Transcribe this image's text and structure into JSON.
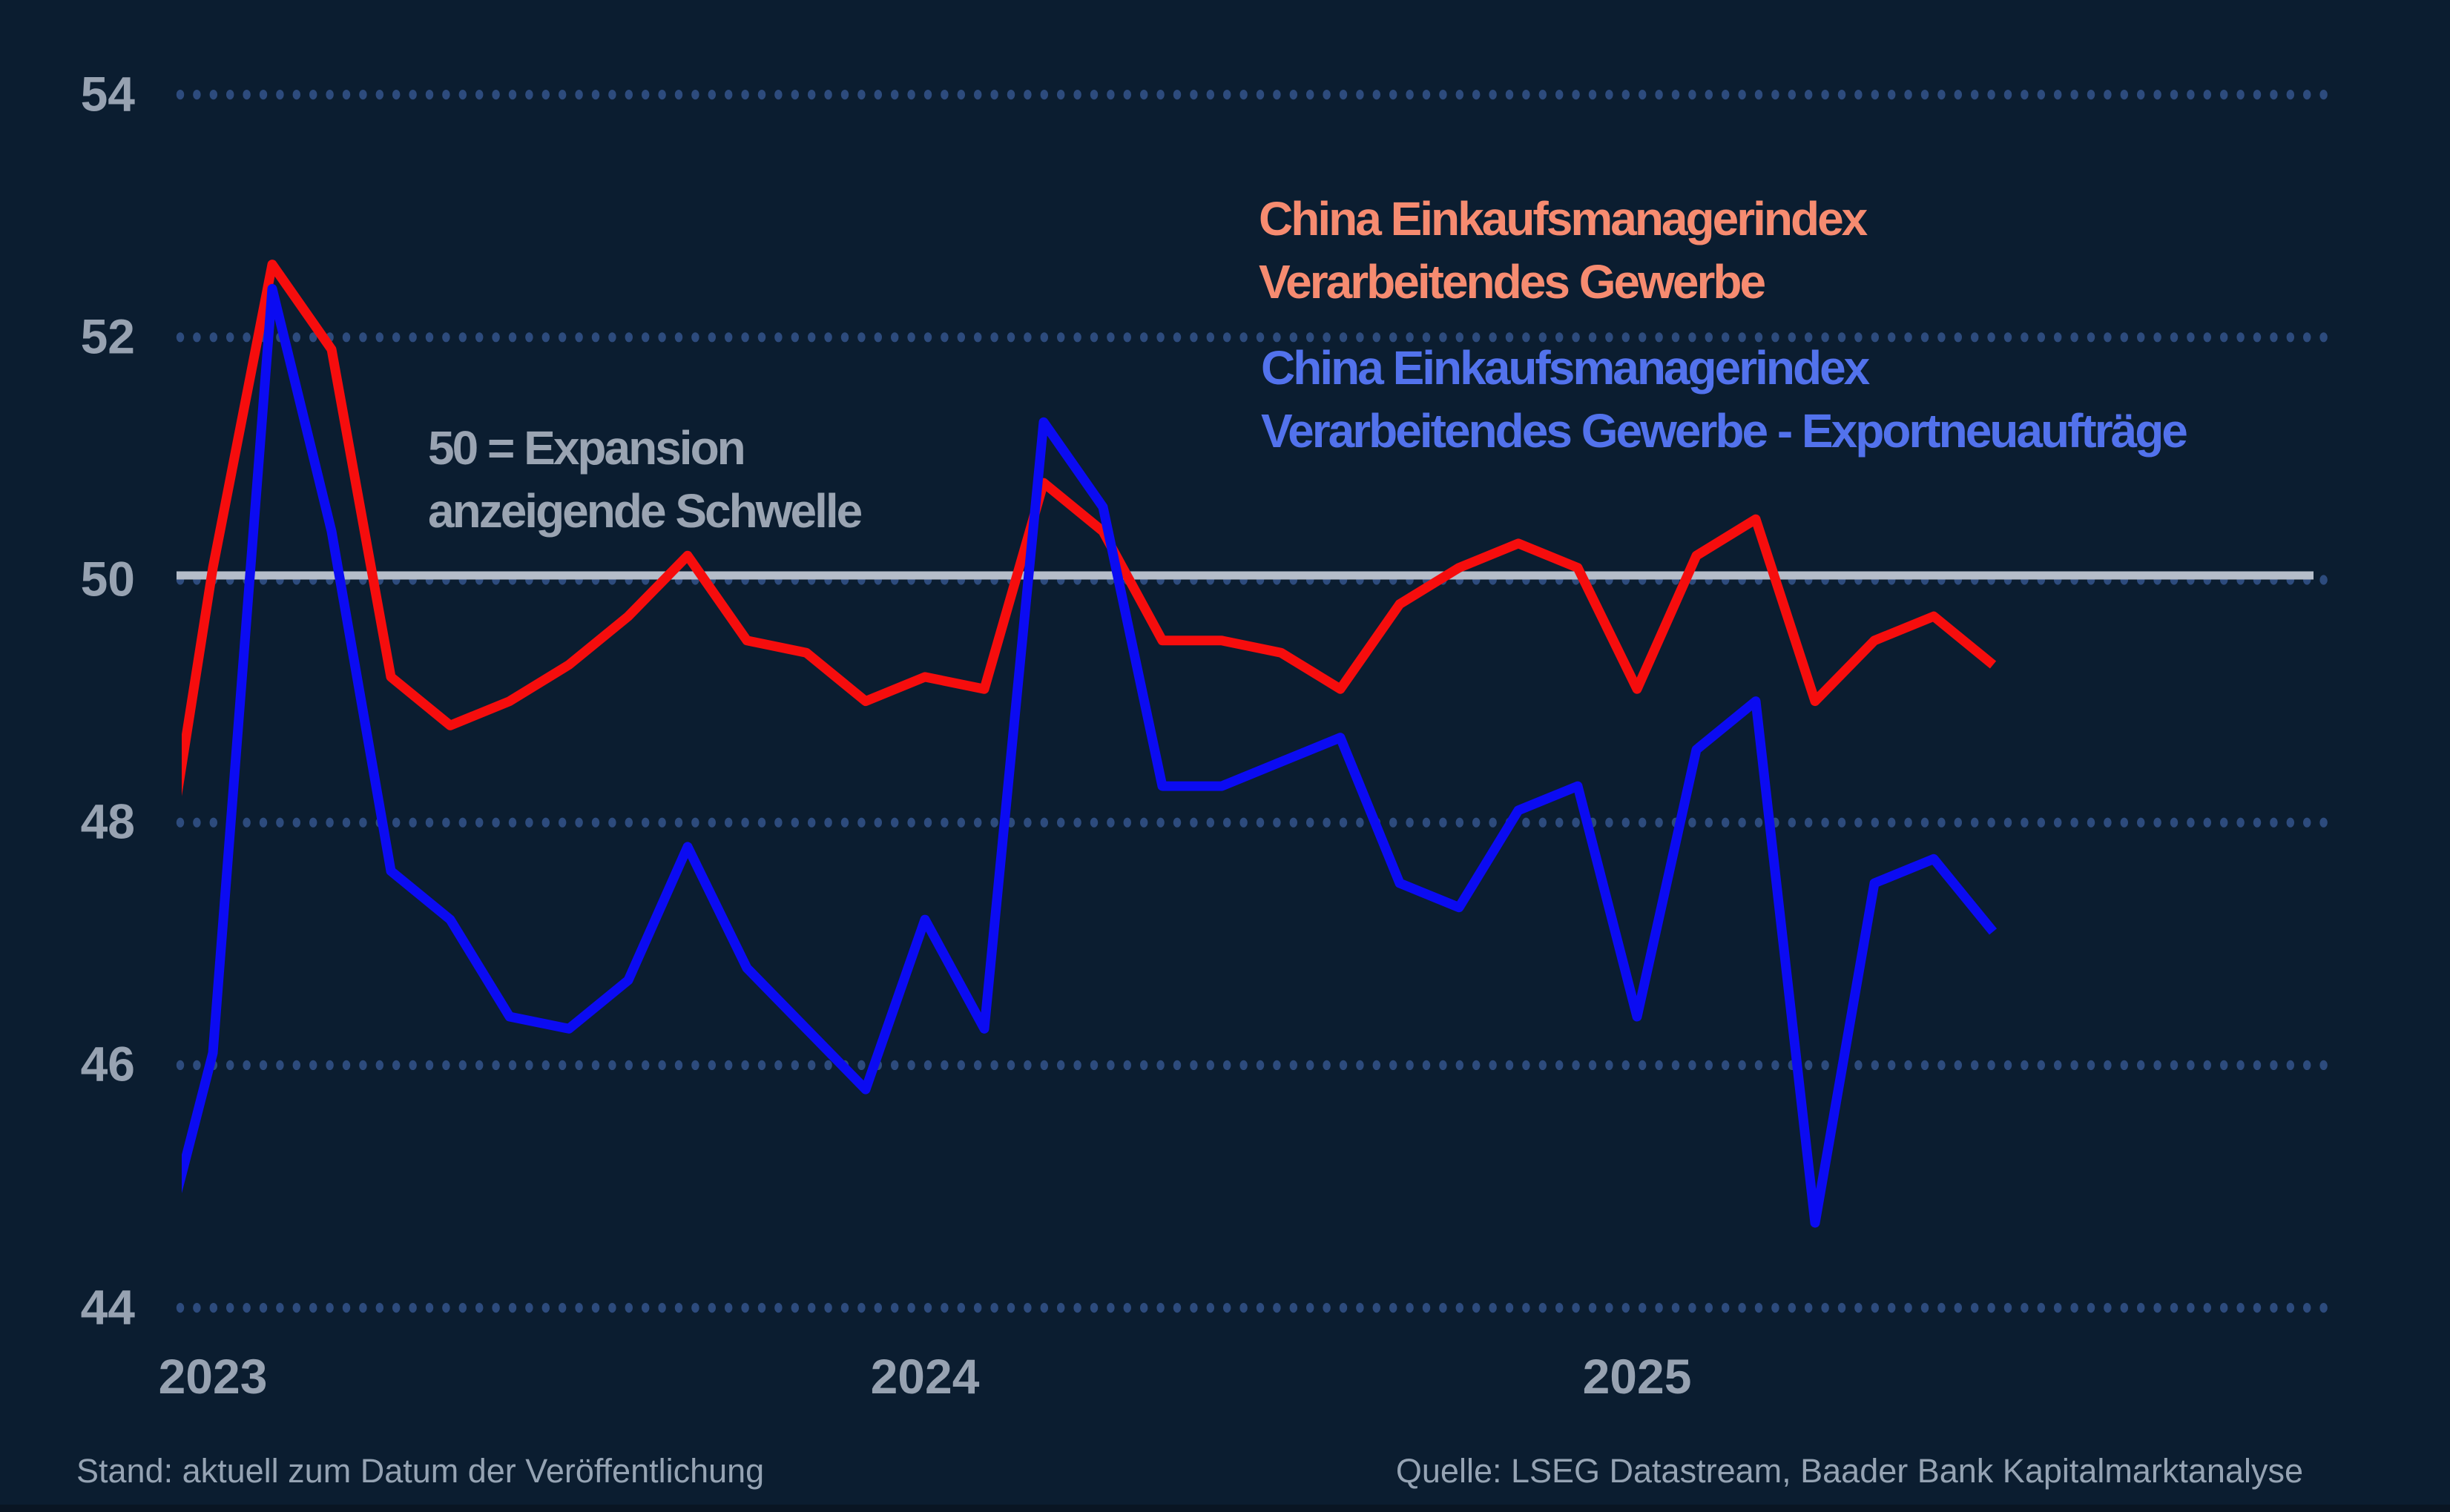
{
  "colors": {
    "background": "#0b1d30",
    "bottom_bar": "#091523",
    "grid_dot": "#2d4b7d",
    "threshold": "#b5bdc9",
    "red_line": "#f60d0d",
    "blue_line": "#0b0bf2",
    "legend_red": "#f68b70",
    "legend_blue": "#5272ec",
    "axis_text": "#97a2b1",
    "annotation_text": "#9aa4b2",
    "footer_text": "#95a3b3"
  },
  "axis": {
    "y_labels": [
      "54",
      "52",
      "50",
      "48",
      "46",
      "44"
    ],
    "x_labels": [
      "2023",
      "2024",
      "2025"
    ]
  },
  "legend": {
    "red": {
      "line1": "China Einkaufsmanagerindex",
      "line2": "Verarbeitendes Gewerbe"
    },
    "blue": {
      "line1": "China Einkaufsmanagerindex",
      "line2": "Verarbeitendes Gewerbe - Exportneuaufträge"
    }
  },
  "annotation": {
    "line1": "50 = Expansion",
    "line2": "anzeigende Schwelle"
  },
  "footer": {
    "left": "Stand: aktuell zum Datum der Veröffentlichung",
    "right": "Quelle: LSEG Datastream, Baader Bank Kapitalmarktanalyse"
  },
  "chart_data": {
    "type": "line",
    "title": "",
    "xlabel": "",
    "ylabel": "",
    "ylim": [
      43.5,
      54.5
    ],
    "yticks": [
      54,
      52,
      50,
      48,
      46,
      44
    ],
    "grid": "dotted-horizontal",
    "legend_position": "top-right",
    "threshold": {
      "value": 50,
      "label": "50 = Expansion anzeigende Schwelle"
    },
    "x": [
      "2022-12",
      "2023-01",
      "2023-02",
      "2023-03",
      "2023-04",
      "2023-05",
      "2023-06",
      "2023-07",
      "2023-08",
      "2023-09",
      "2023-10",
      "2023-11",
      "2023-12",
      "2024-01",
      "2024-02",
      "2024-03",
      "2024-04",
      "2024-05",
      "2024-06",
      "2024-07",
      "2024-08",
      "2024-09",
      "2024-10",
      "2024-11",
      "2024-12",
      "2025-01",
      "2025-02",
      "2025-03",
      "2025-04",
      "2025-05",
      "2025-06",
      "2025-07"
    ],
    "xticks": [
      {
        "label": "2023",
        "month": "2023-01"
      },
      {
        "label": "2024",
        "month": "2024-01"
      },
      {
        "label": "2025",
        "month": "2025-01"
      }
    ],
    "series": [
      {
        "name": "China Einkaufsmanagerindex Verarbeitendes Gewerbe",
        "color_key": "red_line",
        "values": [
          47.0,
          50.1,
          52.6,
          51.9,
          49.2,
          48.8,
          49.0,
          49.3,
          49.7,
          50.2,
          49.5,
          49.4,
          49.0,
          49.2,
          49.1,
          50.8,
          50.4,
          49.5,
          49.5,
          49.4,
          49.1,
          49.8,
          50.1,
          50.3,
          50.1,
          49.1,
          50.2,
          50.5,
          49.0,
          49.5,
          49.7,
          49.3
        ]
      },
      {
        "name": "China Einkaufsmanagerindex Verarbeitendes Gewerbe - Exportneuaufträge",
        "color_key": "blue_line",
        "values": [
          44.2,
          46.1,
          52.4,
          50.4,
          47.6,
          47.2,
          46.4,
          46.3,
          46.7,
          47.8,
          46.8,
          46.3,
          45.8,
          47.2,
          46.3,
          51.3,
          50.6,
          48.3,
          48.3,
          48.5,
          48.7,
          47.5,
          47.3,
          48.1,
          48.3,
          46.4,
          48.6,
          49.0,
          44.7,
          47.5,
          47.7,
          47.1
        ]
      }
    ]
  }
}
